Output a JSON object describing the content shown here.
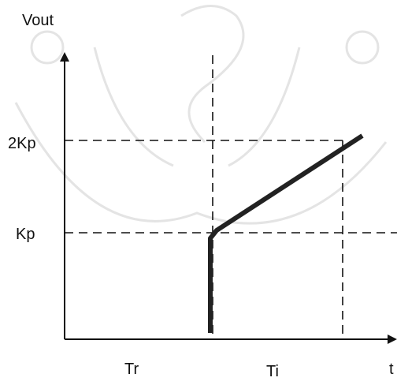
{
  "axes": {
    "y_label": "Vout",
    "x_label": "t"
  },
  "levels": {
    "high": "2Kp",
    "low": "Kp"
  },
  "times": {
    "rise": "Tr",
    "integral": "Ti"
  }
}
